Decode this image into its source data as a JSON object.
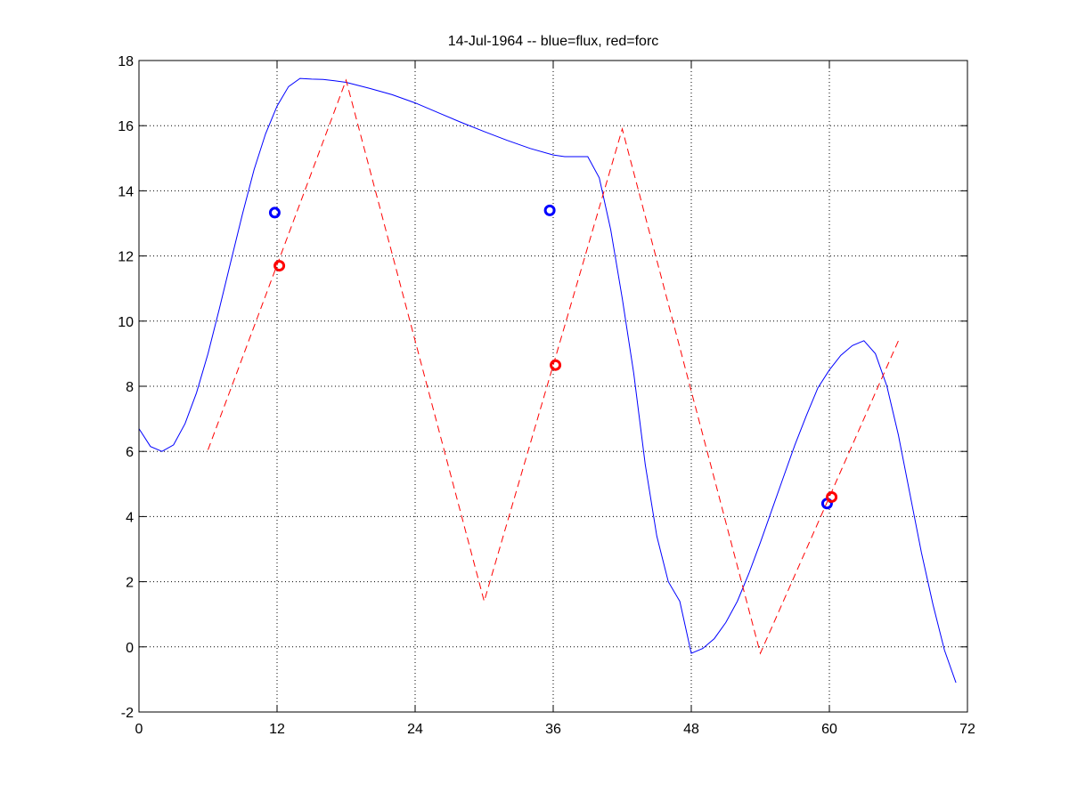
{
  "chart_data": {
    "type": "line",
    "title": "14-Jul-1964 -- blue=flux, red=forc",
    "xlabel": "",
    "ylabel": "",
    "xlim": [
      0,
      72
    ],
    "ylim": [
      -2,
      18
    ],
    "xticks": [
      0,
      12,
      24,
      36,
      48,
      60,
      72
    ],
    "yticks": [
      -2,
      0,
      2,
      4,
      6,
      8,
      10,
      12,
      14,
      16,
      18
    ],
    "grid": true,
    "series": [
      {
        "color": "#0000ff",
        "style": "solid",
        "x": [
          0,
          1,
          2,
          3,
          4,
          5,
          6,
          7,
          8,
          9,
          10,
          11,
          12,
          13,
          14,
          15,
          16,
          17,
          18,
          20,
          22,
          24,
          26,
          28,
          30,
          32,
          34,
          36,
          37,
          38,
          39,
          40,
          41,
          42,
          43,
          44,
          45,
          46,
          47,
          48,
          49,
          50,
          51,
          52,
          53,
          54,
          55,
          56,
          57,
          58,
          59,
          60,
          61,
          62,
          63,
          64,
          65,
          66,
          67,
          68,
          69,
          70,
          71
        ],
        "y": [
          6.7,
          6.15,
          6.0,
          6.2,
          6.85,
          7.8,
          9.0,
          10.4,
          11.85,
          13.3,
          14.65,
          15.75,
          16.6,
          17.2,
          17.45,
          17.43,
          17.42,
          17.38,
          17.33,
          17.15,
          16.95,
          16.7,
          16.4,
          16.1,
          15.82,
          15.55,
          15.3,
          15.1,
          15.05,
          15.05,
          15.05,
          14.4,
          12.8,
          10.7,
          8.4,
          5.6,
          3.4,
          2.0,
          1.4,
          -0.2,
          -0.05,
          0.25,
          0.75,
          1.4,
          2.25,
          3.2,
          4.2,
          5.2,
          6.2,
          7.1,
          7.95,
          8.5,
          8.95,
          9.25,
          9.4,
          9.0,
          8.0,
          6.5,
          4.7,
          2.9,
          1.3,
          -0.1,
          -1.1
        ]
      },
      {
        "color": "#ff0000",
        "style": "dashed",
        "x": [
          6,
          18,
          30,
          42,
          54,
          66
        ],
        "y": [
          6.05,
          17.4,
          1.4,
          15.9,
          -0.2,
          9.4
        ]
      }
    ],
    "markers": [
      {
        "color": "#0000ff",
        "x": [
          11.8,
          35.7,
          59.8
        ],
        "y": [
          13.33,
          13.4,
          4.4
        ]
      },
      {
        "color": "#ff0000",
        "x": [
          12.2,
          36.2,
          60.2
        ],
        "y": [
          11.7,
          8.65,
          4.6
        ]
      }
    ]
  }
}
